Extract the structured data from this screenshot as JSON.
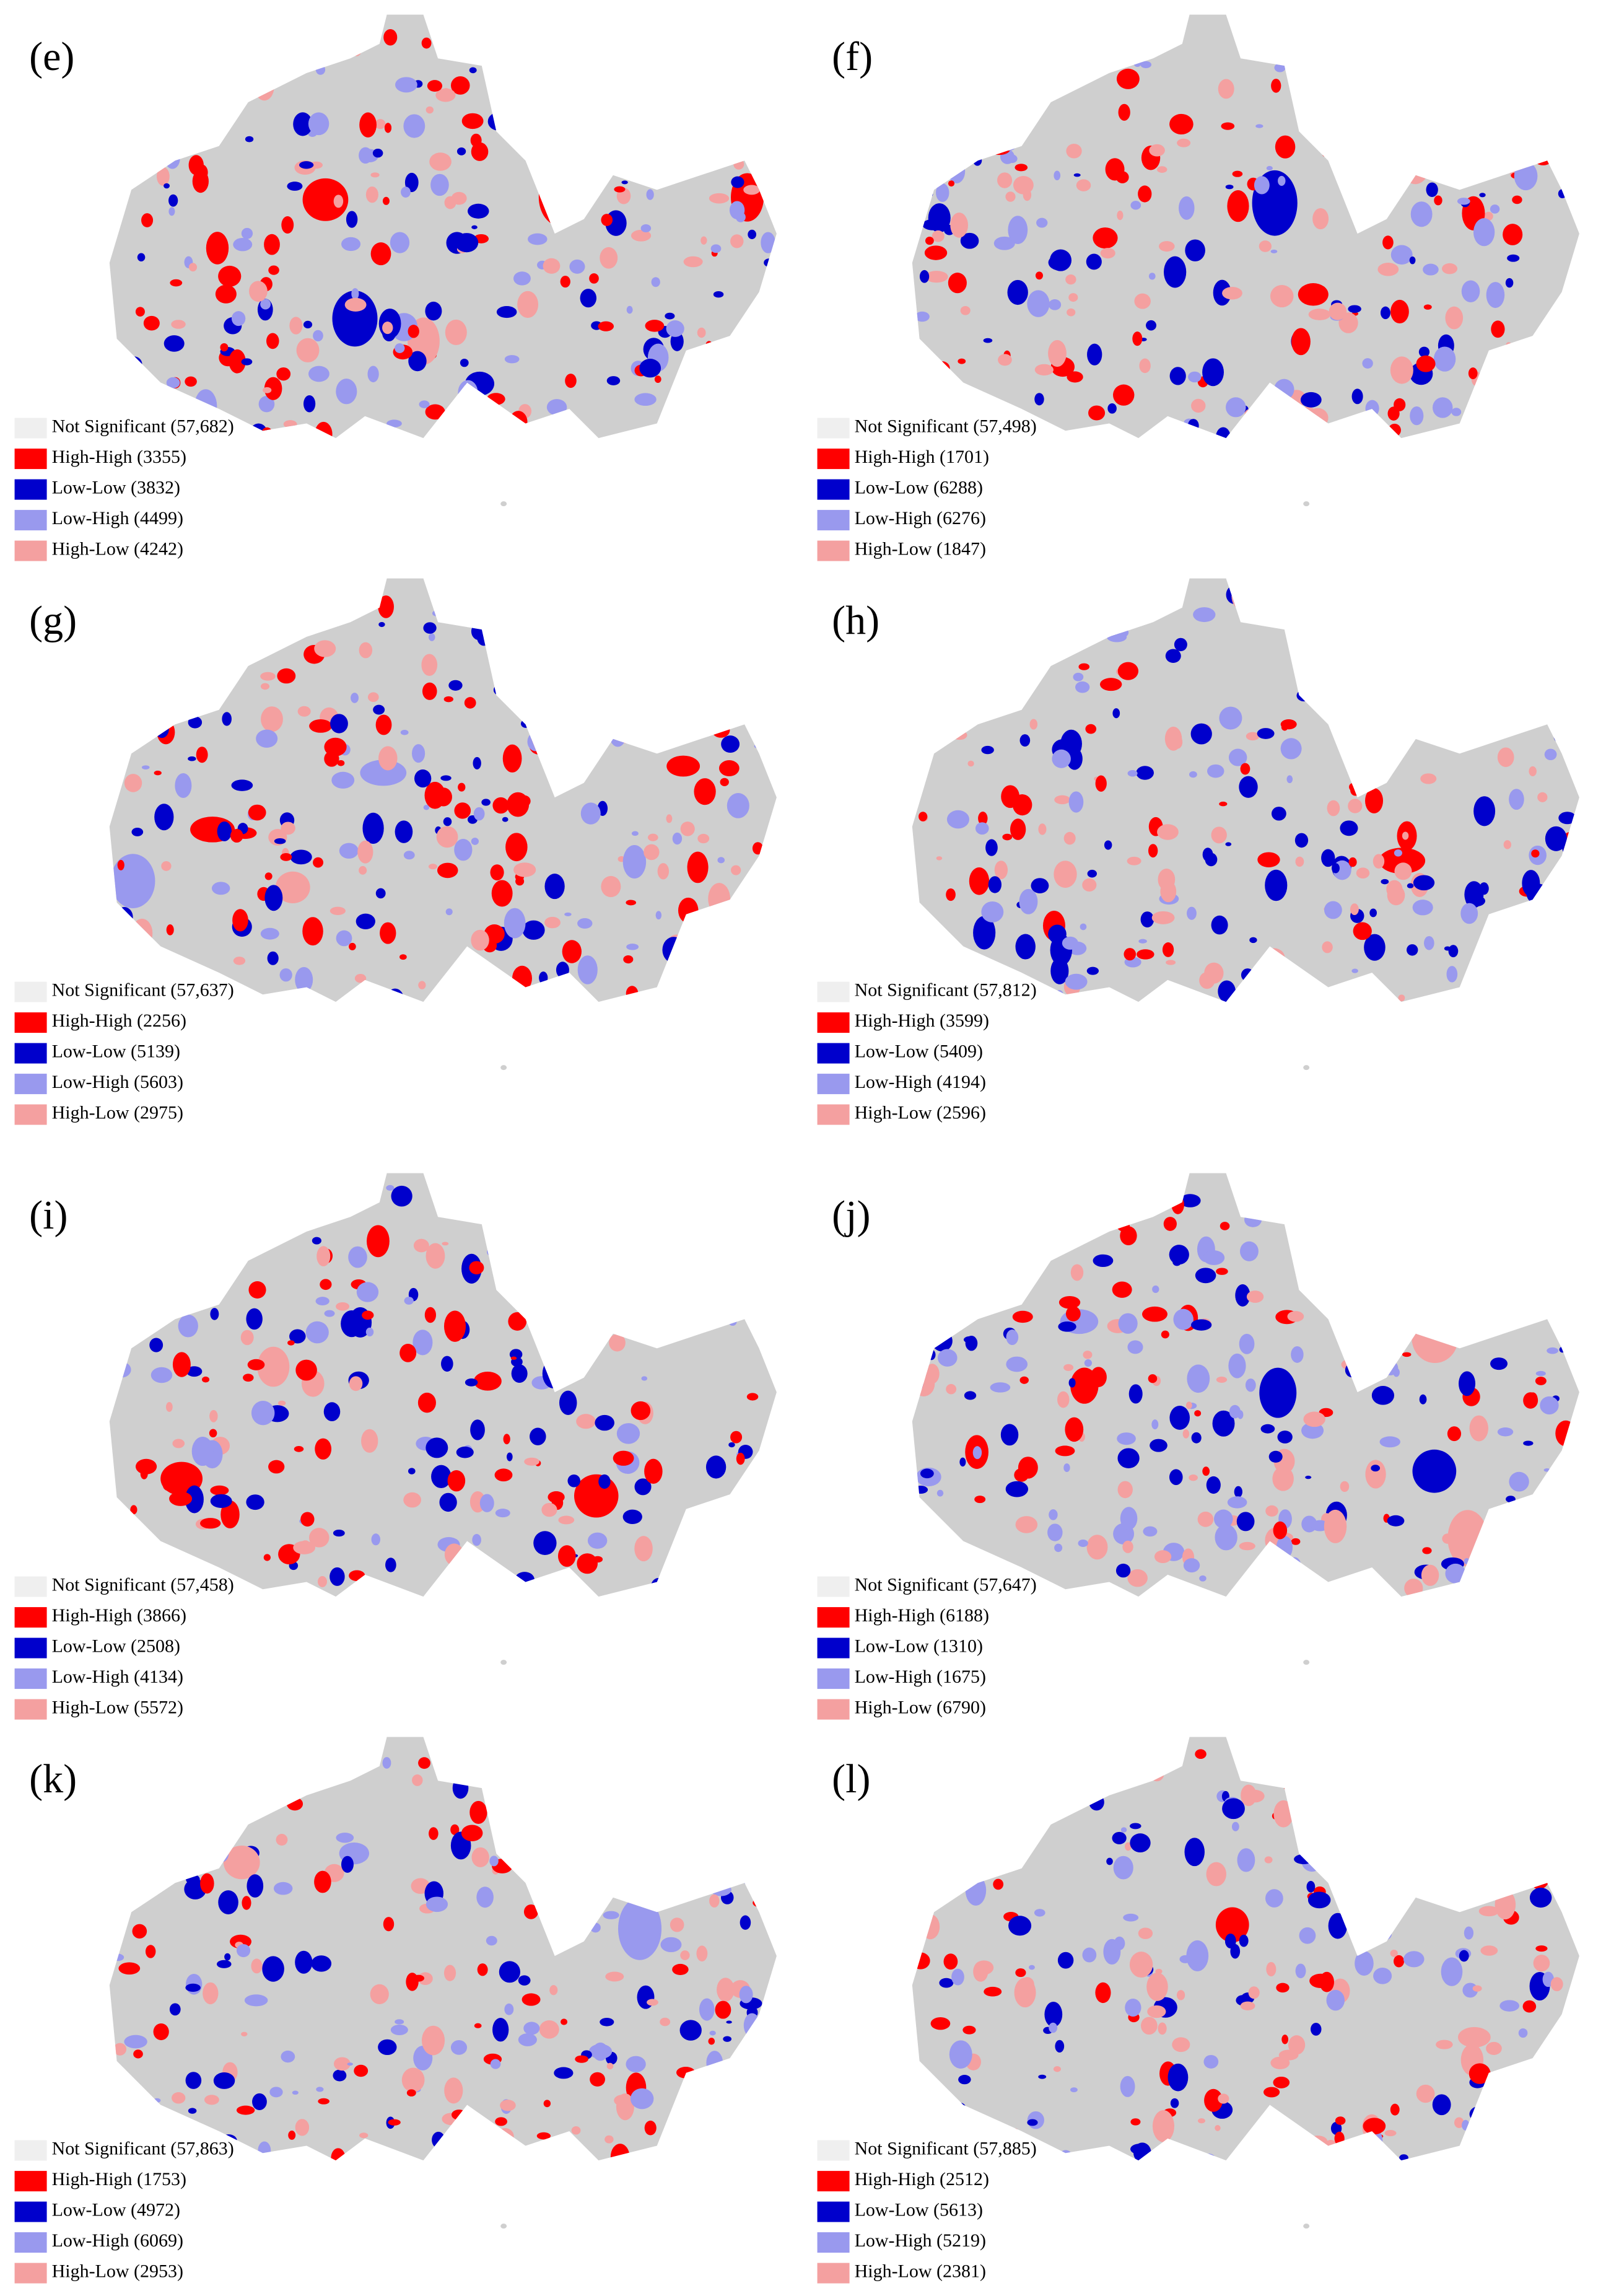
{
  "legend_colors": [
    "#efefef",
    "#ff0000",
    "#0000cc",
    "#9999ee",
    "#f4a0a0"
  ],
  "panels": [
    {
      "label": "(e)",
      "legend": [
        "Not Significant (57,682)",
        "High-High (3355)",
        "Low-Low (3832)",
        "Low-High (4499)",
        "High-Low (4242)"
      ]
    },
    {
      "label": "(f)",
      "legend": [
        "Not Significant (57,498)",
        "High-High (1701)",
        "Low-Low (6288)",
        "Low-High (6276)",
        "High-Low (1847)"
      ]
    },
    {
      "label": "(g)",
      "legend": [
        "Not Significant (57,637)",
        "High-High (2256)",
        "Low-Low (5139)",
        "Low-High (5603)",
        "High-Low (2975)"
      ]
    },
    {
      "label": "(h)",
      "legend": [
        "Not Significant (57,812)",
        "High-High (3599)",
        "Low-Low (5409)",
        "Low-High (4194)",
        "High-Low (2596)"
      ]
    },
    {
      "label": "(i)",
      "legend": [
        "Not Significant (57,458)",
        "High-High (3866)",
        "Low-Low (2508)",
        "Low-High (4134)",
        "High-Low (5572)"
      ]
    },
    {
      "label": "(j)",
      "legend": [
        "Not Significant (57,647)",
        "High-High (6188)",
        "Low-Low (1310)",
        "Low-High (1675)",
        "High-Low (6790)"
      ]
    },
    {
      "label": "(k)",
      "legend": [
        "Not Significant (57,863)",
        "High-High (1753)",
        "Low-Low (4972)",
        "Low-High (6069)",
        "High-Low (2953)"
      ]
    },
    {
      "label": "(l)",
      "legend": [
        "Not Significant (57,885)",
        "High-High (2512)",
        "Low-Low (5613)",
        "Low-High (5219)",
        "High-Low (2381)"
      ]
    }
  ]
}
